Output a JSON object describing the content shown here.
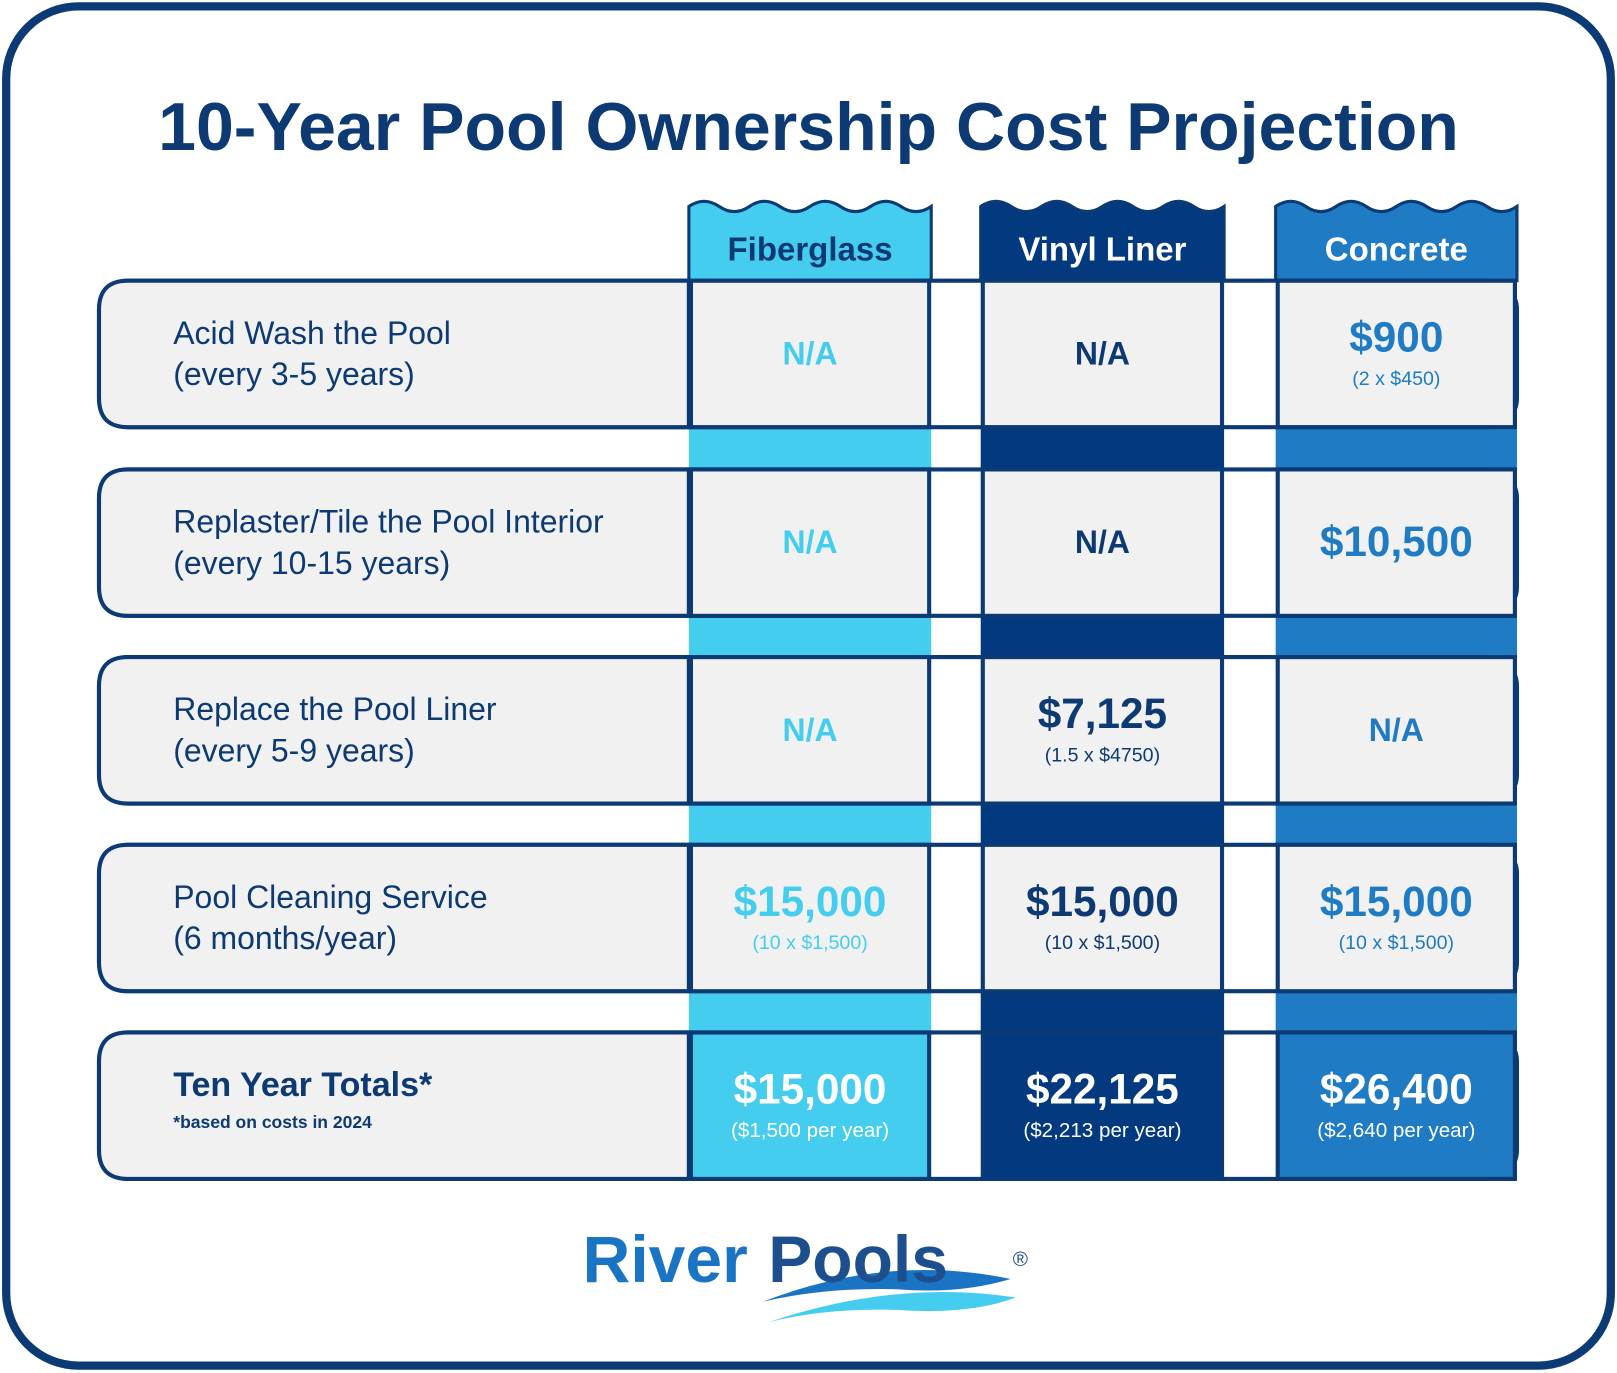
{
  "title": "10-Year Pool Ownership Cost Projection",
  "table": {
    "columns": [
      "Fiberglass",
      "Vinyl Liner",
      "Concrete"
    ],
    "rows": [
      {
        "label": "Acid Wash the Pool",
        "note": "(every 3-5 years)",
        "cells": [
          {
            "value": "N/A"
          },
          {
            "value": "N/A"
          },
          {
            "value": "$900",
            "detail": "(2 x $450)"
          }
        ]
      },
      {
        "label": "Replaster/Tile the Pool Interior",
        "note": "(every 10-15 years)",
        "cells": [
          {
            "value": "N/A"
          },
          {
            "value": "N/A"
          },
          {
            "value": "$10,500"
          }
        ]
      },
      {
        "label": "Replace the Pool Liner",
        "note": "(every 5-9 years)",
        "cells": [
          {
            "value": "N/A"
          },
          {
            "value": "$7,125",
            "detail": "(1.5 x $4750)"
          },
          {
            "value": "N/A"
          }
        ]
      },
      {
        "label": "Pool Cleaning Service",
        "note": "(6 months/year)",
        "cells": [
          {
            "value": "$15,000",
            "detail": "(10 x $1,500)"
          },
          {
            "value": "$15,000",
            "detail": "(10 x $1,500)"
          },
          {
            "value": "$15,000",
            "detail": "(10 x $1,500)"
          }
        ]
      }
    ],
    "totals": {
      "label": "Ten Year Totals*",
      "note": "*based on costs in 2024",
      "cells": [
        {
          "value": "$15,000",
          "detail": "($1,500 per year)"
        },
        {
          "value": "$22,125",
          "detail": "($2,213 per year)"
        },
        {
          "value": "$26,400",
          "detail": "($2,640 per year)"
        }
      ]
    }
  },
  "logo": {
    "words": [
      "River",
      "Pools"
    ],
    "mark": "®"
  }
}
